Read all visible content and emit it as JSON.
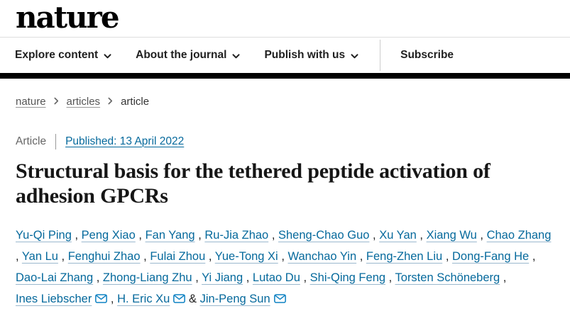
{
  "colors": {
    "link": "#05699c",
    "envelope_icon": "#0e82c3",
    "nav_text": "#1f1f1f",
    "black_bar": "#000000",
    "breadcrumb_link": "#555555",
    "muted_text": "#666666"
  },
  "header": {
    "logo_text": "nature",
    "nav_items": [
      {
        "label": "Explore content",
        "dropdown": true
      },
      {
        "label": "About the journal",
        "dropdown": true
      },
      {
        "label": "Publish with us",
        "dropdown": true
      }
    ],
    "subscribe_label": "Subscribe"
  },
  "breadcrumb": {
    "items": [
      {
        "label": "nature",
        "link": true
      },
      {
        "label": "articles",
        "link": true
      },
      {
        "label": "article",
        "link": false
      }
    ]
  },
  "article": {
    "type_label": "Article",
    "published_label": "Published: 13 April 2022",
    "title": "Structural basis for the tethered peptide activation of adhesion GPCRs",
    "author_separator": ", ",
    "last_author_prefix": "& ",
    "authors": [
      {
        "name": "Yu-Qi Ping",
        "email": false
      },
      {
        "name": "Peng Xiao",
        "email": false
      },
      {
        "name": "Fan Yang",
        "email": false
      },
      {
        "name": "Ru-Jia Zhao",
        "email": false
      },
      {
        "name": "Sheng-Chao Guo",
        "email": false
      },
      {
        "name": "Xu Yan",
        "email": false
      },
      {
        "name": "Xiang Wu",
        "email": false
      },
      {
        "name": "Chao Zhang",
        "email": false
      },
      {
        "name": "Yan Lu",
        "email": false
      },
      {
        "name": "Fenghui Zhao",
        "email": false
      },
      {
        "name": "Fulai Zhou",
        "email": false
      },
      {
        "name": "Yue-Tong Xi",
        "email": false
      },
      {
        "name": "Wanchao Yin",
        "email": false
      },
      {
        "name": "Feng-Zhen Liu",
        "email": false
      },
      {
        "name": "Dong-Fang He",
        "email": false
      },
      {
        "name": "Dao-Lai Zhang",
        "email": false
      },
      {
        "name": "Zhong-Liang Zhu",
        "email": false
      },
      {
        "name": "Yi Jiang",
        "email": false
      },
      {
        "name": "Lutao Du",
        "email": false
      },
      {
        "name": "Shi-Qing Feng",
        "email": false
      },
      {
        "name": "Torsten Schöneberg",
        "email": false
      },
      {
        "name": "Ines Liebscher",
        "email": true
      },
      {
        "name": "H. Eric Xu",
        "email": true
      },
      {
        "name": "Jin-Peng Sun",
        "email": true
      }
    ]
  }
}
